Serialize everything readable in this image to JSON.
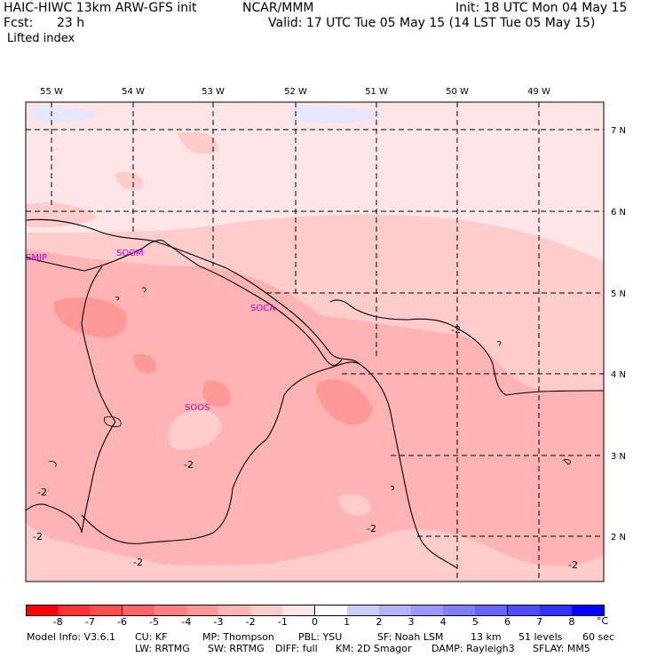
{
  "header": {
    "model": "HAIC-HIWC 13km ARW-GFS init",
    "org": "NCAR/MMM",
    "init": "Init: 18 UTC Mon 04 May 15",
    "fcst_label": "Fcst:",
    "fcst_value": "23 h",
    "valid": "Valid: 17 UTC Tue 05 May 15 (14 LST Tue 05 May 15)",
    "field": "Lifted index"
  },
  "map": {
    "lon_labels": [
      "55 W",
      "54 W",
      "53 W",
      "52 W",
      "51 W",
      "50 W",
      "49 W"
    ],
    "lat_labels": [
      "7 N",
      "6 N",
      "5 N",
      "4 N",
      "3 N",
      "2 N"
    ],
    "stations": [
      "SMJP",
      "SOGM",
      "SOCA",
      "SOOS"
    ],
    "contour_labels": [
      "-2",
      "-2",
      "-2",
      "-2",
      "-2",
      "-2",
      "-2"
    ]
  },
  "colorbar": {
    "colors": [
      "#ff0000",
      "#ff3333",
      "#ff4d4d",
      "#ff6666",
      "#ff8080",
      "#ff9999",
      "#ffb3b3",
      "#ffcccc",
      "#ffe6e6",
      "#ffffff",
      "#ccccff",
      "#b3b3ff",
      "#9999ff",
      "#8080ff",
      "#6666ff",
      "#4d4dff",
      "#3333ff",
      "#0000ff"
    ],
    "labels": [
      "-8",
      "-7",
      "-6",
      "-5",
      "-4",
      "-3",
      "-2",
      "-1",
      "0",
      "1",
      "2",
      "3",
      "4",
      "5",
      "6",
      "7",
      "8"
    ],
    "unit": "°C"
  },
  "footer": {
    "line1": [
      "Model Info: V3.6.1",
      "CU: KF",
      "MP: Thompson",
      "PBL: YSU",
      "SF: Noah LSM",
      "13 km",
      "51 levels",
      "60 sec"
    ],
    "line2": [
      "LW: RRTMG",
      "SW: RRTMG",
      "DIFF: full",
      "KM: 2D Smagor",
      "DAMP: Rayleigh3",
      "SFLAY: MM5"
    ]
  }
}
